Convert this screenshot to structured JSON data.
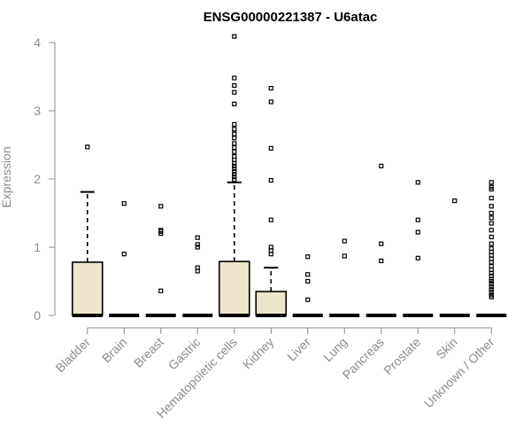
{
  "chart_data": {
    "type": "boxplot",
    "title": "ENSG00000221387 - U6atac",
    "xlabel": "",
    "ylabel": "Expression",
    "ylim": [
      0,
      4
    ],
    "yticks": [
      0,
      1,
      2,
      3,
      4
    ],
    "box_color": "#ede6cb",
    "categories": [
      "Bladder",
      "Brain",
      "Breast",
      "Gastric",
      "Hematopoietic cells",
      "Kidney",
      "Liver",
      "Lung",
      "Pancreas",
      "Prostate",
      "Skin",
      "Unknown / Other"
    ],
    "boxes": [
      {
        "category": "Bladder",
        "min": 0,
        "q1": 0,
        "median": 0,
        "q3": 0.78,
        "max": 1.81,
        "outliers": [
          2.47
        ]
      },
      {
        "category": "Brain",
        "min": 0,
        "q1": 0,
        "median": 0,
        "q3": 0,
        "max": 0,
        "outliers": [
          0.9,
          1.64
        ]
      },
      {
        "category": "Breast",
        "min": 0,
        "q1": 0,
        "median": 0,
        "q3": 0,
        "max": 0,
        "outliers": [
          0.36,
          1.2,
          1.23,
          1.25,
          1.6
        ]
      },
      {
        "category": "Gastric",
        "min": 0,
        "q1": 0,
        "median": 0,
        "q3": 0,
        "max": 0,
        "outliers": [
          0.65,
          0.7,
          1.0,
          1.04,
          1.14
        ]
      },
      {
        "category": "Hematopoietic cells",
        "min": 0,
        "q1": 0,
        "median": 0,
        "q3": 0.79,
        "max": 1.95,
        "outliers": [
          4.09,
          3.48,
          3.37,
          3.27,
          3.1,
          2.8,
          2.73,
          2.66,
          2.6,
          2.52,
          2.46,
          2.4,
          2.33,
          2.28,
          2.23,
          2.19,
          2.15,
          2.11,
          2.07,
          2.03,
          1.99
        ]
      },
      {
        "category": "Kidney",
        "min": 0,
        "q1": 0,
        "median": 0,
        "q3": 0.35,
        "max": 0.7,
        "outliers": [
          3.33,
          3.13,
          2.45,
          1.98,
          1.4,
          1.0,
          0.95,
          0.9
        ]
      },
      {
        "category": "Liver",
        "min": 0,
        "q1": 0,
        "median": 0,
        "q3": 0,
        "max": 0,
        "outliers": [
          0.23,
          0.5,
          0.6,
          0.86
        ]
      },
      {
        "category": "Lung",
        "min": 0,
        "q1": 0,
        "median": 0,
        "q3": 0,
        "max": 0,
        "outliers": [
          0.87,
          1.09
        ]
      },
      {
        "category": "Pancreas",
        "min": 0,
        "q1": 0,
        "median": 0,
        "q3": 0,
        "max": 0,
        "outliers": [
          0.8,
          1.05,
          2.19
        ]
      },
      {
        "category": "Prostate",
        "min": 0,
        "q1": 0,
        "median": 0,
        "q3": 0,
        "max": 0,
        "outliers": [
          0.84,
          1.22,
          1.4,
          1.95
        ]
      },
      {
        "category": "Skin",
        "min": 0,
        "q1": 0,
        "median": 0,
        "q3": 0,
        "max": 0,
        "outliers": [
          1.68
        ]
      },
      {
        "category": "Unknown / Other",
        "min": 0,
        "q1": 0,
        "median": 0,
        "q3": 0,
        "max": 0,
        "outliers": [
          1.95,
          1.88,
          1.85,
          1.72,
          1.6,
          1.5,
          1.43,
          1.35,
          1.25,
          1.15,
          1.05,
          0.98,
          0.93,
          0.88,
          0.83,
          0.78,
          0.72,
          0.67,
          0.62,
          0.58,
          0.53,
          0.5,
          0.46,
          0.42,
          0.38,
          0.34,
          0.3,
          0.27
        ]
      }
    ]
  }
}
